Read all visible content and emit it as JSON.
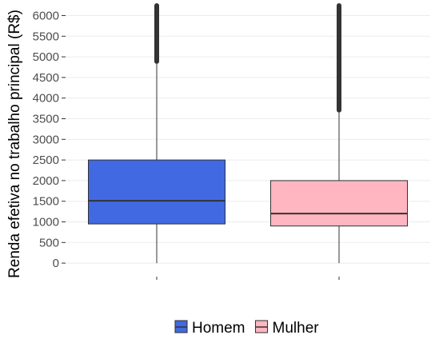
{
  "chart_data": {
    "type": "box",
    "title": "",
    "xlabel": "",
    "ylabel": "Renda efetiva no trabalho principal (R$)",
    "ylim": [
      -250,
      6300
    ],
    "yticks": [
      0,
      500,
      1000,
      1500,
      2000,
      2500,
      3000,
      3500,
      4000,
      4500,
      5000,
      5500,
      6000
    ],
    "grid": true,
    "legend_position": "bottom",
    "categories": [
      "Homem",
      "Mulher"
    ],
    "series": [
      {
        "name": "Homem",
        "color": "#4169E1",
        "q1": 950,
        "median": 1510,
        "q3": 2500,
        "whisker_low": 0,
        "whisker_high": 4830,
        "outliers_from": 4830,
        "outliers_to": 6300
      },
      {
        "name": "Mulher",
        "color": "#FFB6C1",
        "q1": 900,
        "median": 1200,
        "q3": 2000,
        "whisker_low": 0,
        "whisker_high": 3650,
        "outliers_from": 3650,
        "outliers_to": 6300
      }
    ]
  }
}
